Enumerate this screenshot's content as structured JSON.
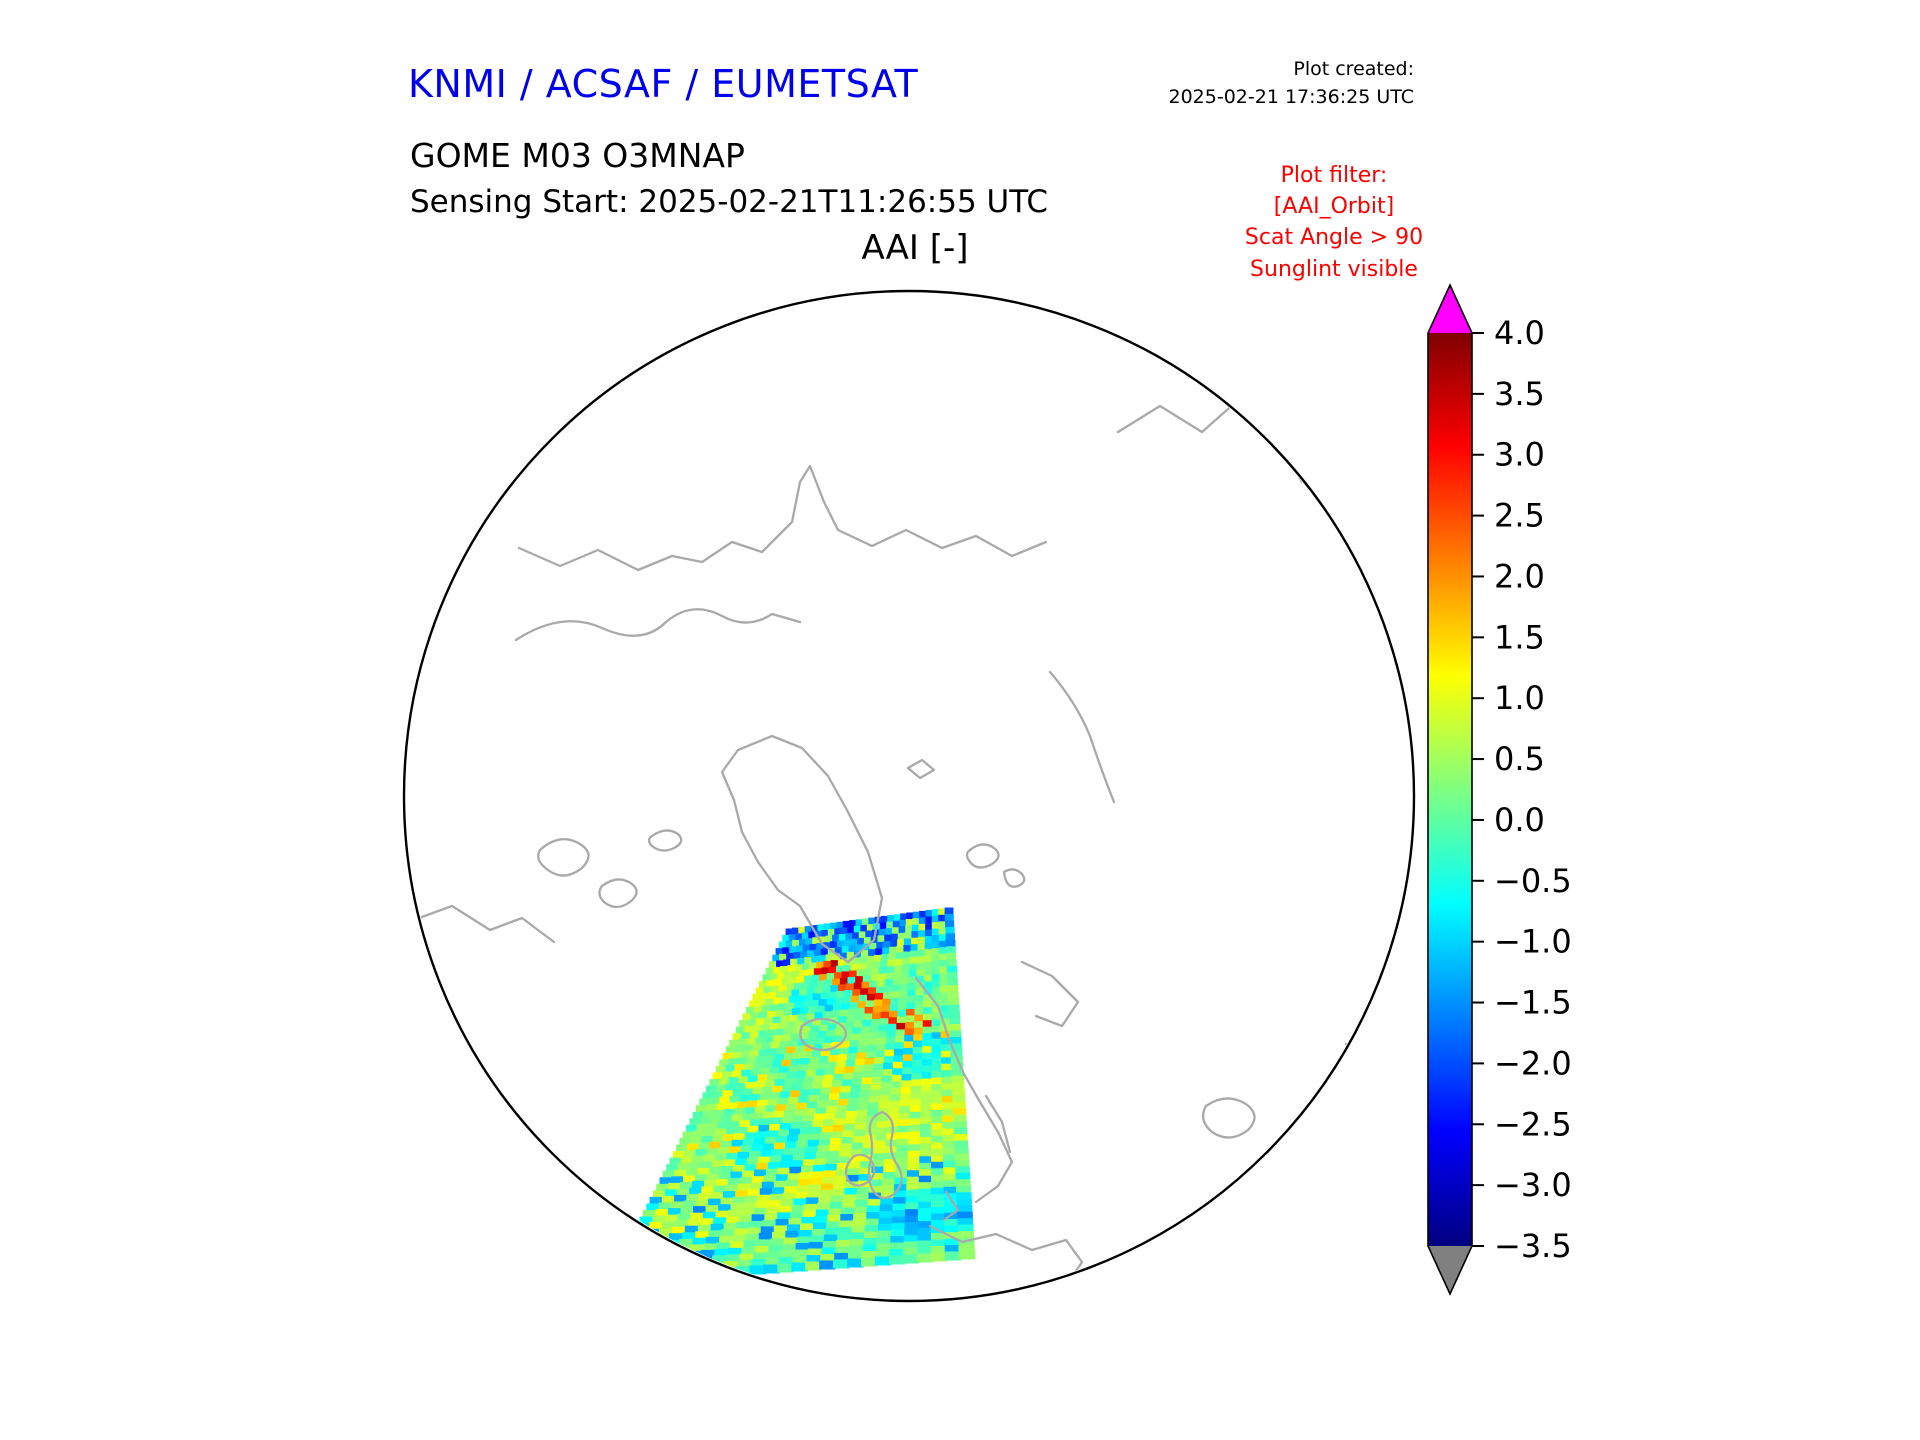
{
  "header": {
    "org_title": "KNMI / ACSAF / EUMETSAT",
    "plot_created_label": "Plot created:",
    "plot_created_time": "2025-02-21 17:36:25 UTC",
    "product_title": "GOME M03 O3MNAP",
    "sensing_start": "Sensing Start: 2025-02-21T11:26:55 UTC",
    "map_title": "AAI [-]"
  },
  "plot_filter": {
    "color": "#ff0000",
    "lines": [
      "Plot filter:",
      "[AAI_Orbit]",
      "Scat Angle > 90",
      "Sunglint visible"
    ]
  },
  "colors": {
    "org_title": "#0000ee",
    "coastline": "#a9a9a9",
    "map_outline": "#000000",
    "background": "#ffffff"
  },
  "colorbar": {
    "tick_labels": [
      "4.0",
      "3.5",
      "3.0",
      "2.5",
      "2.0",
      "1.5",
      "1.0",
      "0.5",
      "0.0",
      "−0.5",
      "−1.0",
      "−1.5",
      "−2.0",
      "−2.5",
      "−3.0",
      "−3.5"
    ],
    "over_color": "#ff00ff",
    "under_color": "#808080"
  },
  "chart_data": {
    "type": "heatmap",
    "title": "AAI [-]",
    "subtitle": "GOME M03 O3MNAP — Sensing Start: 2025-02-21T11:26:55 UTC",
    "projection": "north polar stereographic circular map, Europe/North Atlantic at bottom, gray coastlines",
    "colormap": "jet with magenta over-range arrow and gray under-range arrow",
    "value_axis": {
      "label": "AAI [-]",
      "vmin": -3.5,
      "vmax": 4.0,
      "tick_step": 0.5,
      "ticks": [
        4.0,
        3.5,
        3.0,
        2.5,
        2.0,
        1.5,
        1.0,
        0.5,
        0.0,
        -0.5,
        -1.0,
        -1.5,
        -2.0,
        -2.5,
        -3.0,
        -3.5
      ]
    },
    "series": [
      {
        "name": "AAI orbit swath",
        "description": "Single descending orbit swath, narrow end near the North Pole widening toward the lower left; crosses southeast Greenland, Iceland, the British Isles and the North Atlantic. Values mostly between -1.0 and +1.0 (cyan/green/yellow speckle); a streak of high values ~2 to 3.5 (orange/red) crosses the swath near Greenland's east coast; dark blue speckles (~ -1.5 to -2.5) at the poleward tip and scattered cyan patches toward the southern end.",
        "approx_value_range": [
          -2.5,
          3.5
        ]
      }
    ],
    "legend": "vertical colorbar at right edge with arrows for out-of-range values"
  }
}
